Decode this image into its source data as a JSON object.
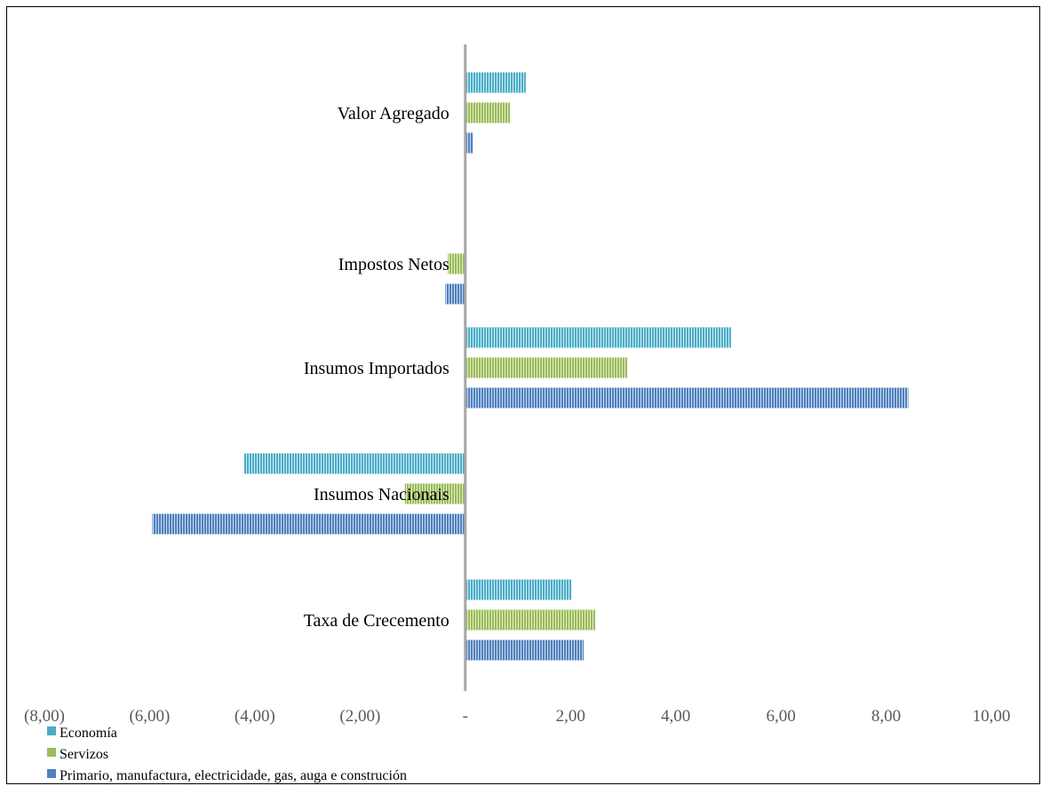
{
  "chart_data": {
    "type": "bar",
    "orientation": "horizontal",
    "categories": [
      "Valor Agregado",
      "Impostos Netos",
      "Insumos Importados",
      "Insumos Nacionais",
      "Taxa de Crecemento"
    ],
    "series": [
      {
        "name": "Economía",
        "color": "#4bacc6",
        "values": [
          1.15,
          0.0,
          5.05,
          -4.2,
          2.02
        ]
      },
      {
        "name": "Servizos",
        "color": "#9bbb59",
        "values": [
          0.85,
          -0.33,
          3.08,
          -1.15,
          2.47
        ]
      },
      {
        "name": "Primario, manufactura, electricidade, gas, auga e construción",
        "color": "#4f81bd",
        "values": [
          0.15,
          -0.38,
          8.42,
          -5.95,
          2.25
        ]
      }
    ],
    "xlim": [
      -8,
      10
    ],
    "xticks": [
      -8,
      -6,
      -4,
      -2,
      0,
      2,
      4,
      6,
      8,
      10
    ],
    "xtick_labels": [
      "(8,00)",
      "(6,00)",
      "(4,00)",
      "(2,00)",
      "-",
      "2,00",
      "4,00",
      "6,00",
      "8,00",
      "10,00"
    ],
    "grid": false,
    "legend_position": "bottom-left"
  }
}
